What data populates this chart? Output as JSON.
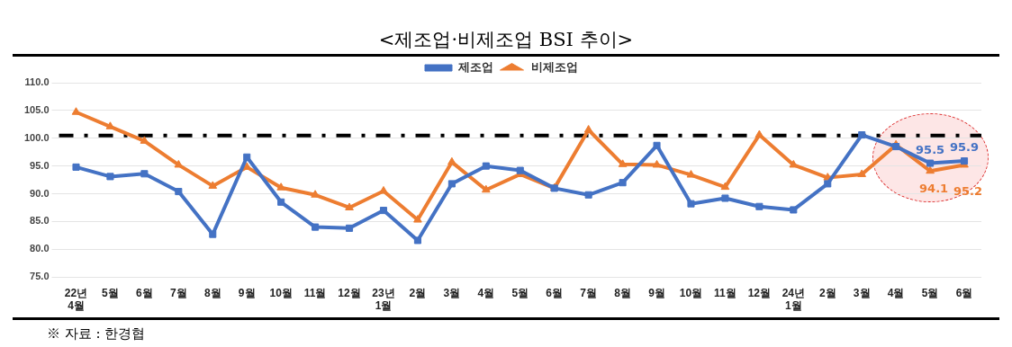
{
  "chart_data": {
    "type": "line",
    "title": "<제조업·비제조업 BSI 추이>",
    "categories": [
      "22년\n4월",
      "5월",
      "6월",
      "7월",
      "8월",
      "9월",
      "10월",
      "11월",
      "12월",
      "23년\n1월",
      "2월",
      "3월",
      "4월",
      "5월",
      "6월",
      "7월",
      "8월",
      "9월",
      "10월",
      "11월",
      "12월",
      "24년\n1월",
      "2월",
      "3월",
      "4월",
      "5월",
      "6월"
    ],
    "series": [
      {
        "name": "제조업",
        "color": "#4472c4",
        "marker": "square",
        "values": [
          94.8,
          93.1,
          93.6,
          90.4,
          82.7,
          96.6,
          88.5,
          84.0,
          83.8,
          87.0,
          81.6,
          91.8,
          95.0,
          94.2,
          91.0,
          89.8,
          92.0,
          98.7,
          88.2,
          89.2,
          87.7,
          87.1,
          91.8,
          100.6,
          98.5,
          95.5,
          95.9
        ],
        "value_labels": [
          null,
          null,
          null,
          null,
          null,
          null,
          null,
          null,
          null,
          null,
          null,
          null,
          null,
          null,
          null,
          null,
          null,
          null,
          null,
          null,
          null,
          null,
          null,
          null,
          null,
          "95.5",
          "95.9"
        ]
      },
      {
        "name": "비제조업",
        "color": "#ed7d31",
        "marker": "triangle",
        "values": [
          104.7,
          102.1,
          99.5,
          95.2,
          91.4,
          94.8,
          91.1,
          89.8,
          87.5,
          90.5,
          85.3,
          95.7,
          90.7,
          93.5,
          91.0,
          101.5,
          95.3,
          95.2,
          93.4,
          91.2,
          100.6,
          95.2,
          92.9,
          93.5,
          98.8,
          94.1,
          95.2
        ],
        "value_labels": [
          null,
          null,
          null,
          null,
          null,
          null,
          null,
          null,
          null,
          null,
          null,
          null,
          null,
          null,
          null,
          null,
          null,
          null,
          null,
          null,
          null,
          null,
          null,
          null,
          null,
          "94.1",
          "95.2"
        ]
      }
    ],
    "ylim": [
      75,
      110
    ],
    "yticks": [
      {
        "value": 75,
        "label": "75.0"
      },
      {
        "value": 80,
        "label": "80.0"
      },
      {
        "value": 85,
        "label": "85.0"
      },
      {
        "value": 90,
        "label": "90.0"
      },
      {
        "value": 95,
        "label": "95.0"
      },
      {
        "value": 100,
        "label": "100.0"
      },
      {
        "value": 105,
        "label": "105.0"
      },
      {
        "value": 110,
        "label": "110.0"
      }
    ],
    "grid": "y",
    "legend": "top",
    "line_style": "solid",
    "ref_lines": [
      {
        "axis": "y",
        "value": 100.5,
        "color": "#000000",
        "line_style": "dashed"
      }
    ],
    "annotations": [
      "※ 자료 : 한경협"
    ]
  }
}
